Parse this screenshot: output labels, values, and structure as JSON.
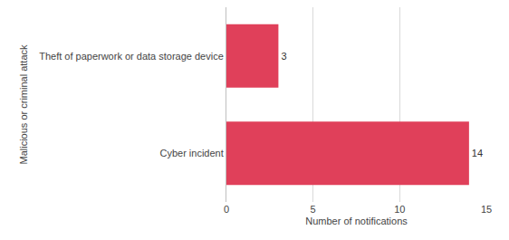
{
  "chart_data": {
    "type": "bar",
    "orientation": "horizontal",
    "categories": [
      "Theft of paperwork or data storage device",
      "Cyber incident"
    ],
    "values": [
      3,
      14
    ],
    "color": "#e0405a",
    "xlabel": "Number of notifications",
    "ylabel": "Malicious or criminal attack",
    "xlim": [
      0,
      15
    ],
    "xticks": [
      0,
      5,
      10,
      15
    ],
    "grid": true,
    "data_labels": true
  }
}
